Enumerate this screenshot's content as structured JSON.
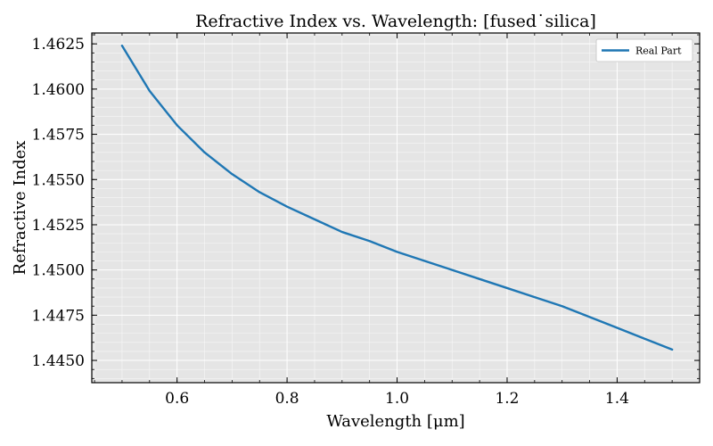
{
  "chart_data": {
    "type": "line",
    "title": "Refractive Index vs. Wavelength: [fused˙silica]",
    "xlabel": "Wavelength [μm]",
    "ylabel": "Refractive Index",
    "xlim": [
      0.445,
      1.55
    ],
    "ylim": [
      1.44377,
      1.4631
    ],
    "xticks": [
      0.6,
      0.8,
      1.0,
      1.2,
      1.4
    ],
    "xtick_labels": [
      "0.6",
      "0.8",
      "1.0",
      "1.2",
      "1.4"
    ],
    "yticks": [
      1.445,
      1.4475,
      1.45,
      1.4525,
      1.455,
      1.4575,
      1.46,
      1.4625
    ],
    "ytick_labels": [
      "1.4450",
      "1.4475",
      "1.4500",
      "1.4525",
      "1.4550",
      "1.4575",
      "1.4600",
      "1.4625"
    ],
    "grid": true,
    "legend_position": "top-right",
    "series": [
      {
        "name": "Real Part",
        "color": "#1f77b4",
        "x": [
          0.5,
          0.55,
          0.6,
          0.65,
          0.7,
          0.75,
          0.8,
          0.85,
          0.9,
          0.95,
          1.0,
          1.05,
          1.1,
          1.15,
          1.2,
          1.25,
          1.3,
          1.35,
          1.4,
          1.45,
          1.5
        ],
        "y": [
          1.4624,
          1.4599,
          1.458,
          1.4565,
          1.4553,
          1.4543,
          1.4535,
          1.4528,
          1.4521,
          1.4516,
          1.451,
          1.4505,
          1.45,
          1.4495,
          1.449,
          1.4485,
          1.448,
          1.4474,
          1.4468,
          1.4462,
          1.4456
        ]
      }
    ]
  }
}
